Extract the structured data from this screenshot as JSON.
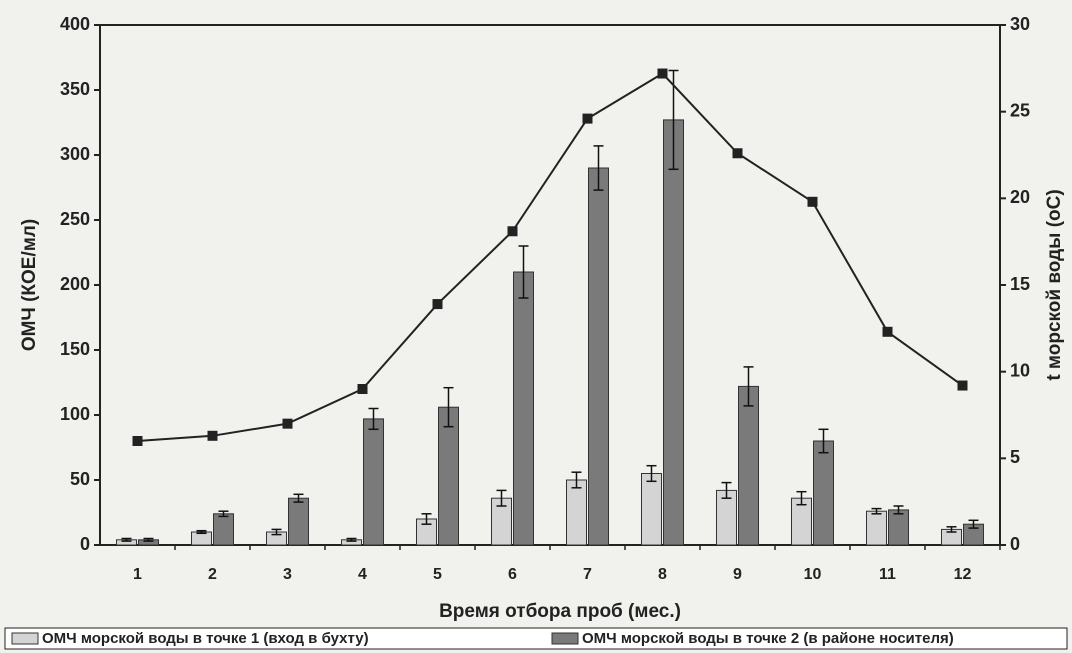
{
  "chart_data": {
    "type": "bar",
    "categories": [
      "1",
      "2",
      "3",
      "4",
      "5",
      "6",
      "7",
      "8",
      "9",
      "10",
      "11",
      "12"
    ],
    "x_label": "Время отбора проб (мес.)",
    "y_label": "ОМЧ (КОЕ/мл)",
    "y2_label": "t морской воды (оС)",
    "ylim": [
      0,
      400
    ],
    "yticks": [
      0,
      50,
      100,
      150,
      200,
      250,
      300,
      350,
      400
    ],
    "y2lim": [
      0,
      30
    ],
    "y2ticks": [
      0,
      5,
      10,
      15,
      20,
      25,
      30
    ],
    "series": [
      {
        "name": "ОМЧ морской воды в точке 1 (вход в бухту)",
        "color": "#d4d4d4",
        "values": [
          4,
          10,
          10,
          4,
          20,
          36,
          50,
          55,
          42,
          36,
          26,
          12
        ],
        "errors": [
          1,
          1,
          2,
          1,
          4,
          6,
          6,
          6,
          6,
          5,
          2,
          2
        ]
      },
      {
        "name": "ОМЧ морской воды в точке 2 (в районе носителя)",
        "color": "#7a7a7a",
        "values": [
          4,
          24,
          36,
          97,
          106,
          210,
          290,
          327,
          122,
          80,
          27,
          16
        ],
        "errors": [
          1,
          2,
          3,
          8,
          15,
          20,
          17,
          38,
          15,
          9,
          3,
          3
        ]
      },
      {
        "type": "line",
        "axis": "y2",
        "color": "#222222",
        "values": [
          6.0,
          6.3,
          7.0,
          9.0,
          13.9,
          18.1,
          24.6,
          27.2,
          22.6,
          19.8,
          12.3,
          9.2
        ]
      }
    ]
  }
}
